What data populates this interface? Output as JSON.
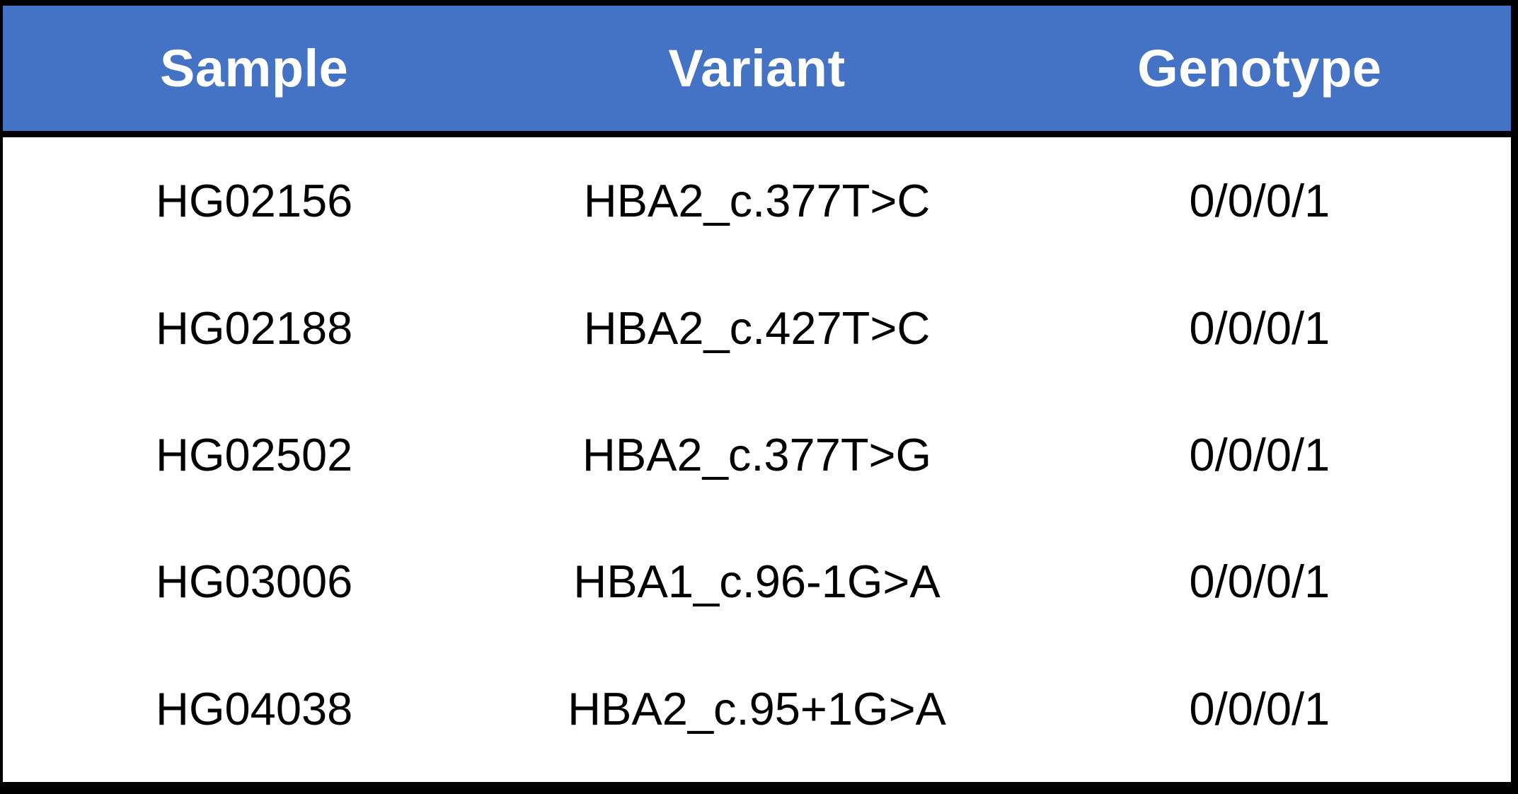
{
  "colors": {
    "header_bg": "#4472C4",
    "header_text": "#FFFFFF",
    "body_bg": "#FFFFFF",
    "body_text": "#000000",
    "border": "#000000"
  },
  "table": {
    "columns": [
      {
        "label": "Sample"
      },
      {
        "label": "Variant"
      },
      {
        "label": "Genotype"
      }
    ],
    "rows": [
      {
        "sample": "HG02156",
        "variant": "HBA2_c.377T>C",
        "genotype": "0/0/0/1"
      },
      {
        "sample": "HG02188",
        "variant": "HBA2_c.427T>C",
        "genotype": "0/0/0/1"
      },
      {
        "sample": "HG02502",
        "variant": "HBA2_c.377T>G",
        "genotype": "0/0/0/1"
      },
      {
        "sample": "HG03006",
        "variant": "HBA1_c.96-1G>A",
        "genotype": "0/0/0/1"
      },
      {
        "sample": "HG04038",
        "variant": "HBA2_c.95+1G>A",
        "genotype": "0/0/0/1"
      }
    ]
  },
  "chart_data": {
    "type": "table",
    "title": "",
    "columns": [
      "Sample",
      "Variant",
      "Genotype"
    ],
    "rows": [
      [
        "HG02156",
        "HBA2_c.377T>C",
        "0/0/0/1"
      ],
      [
        "HG02188",
        "HBA2_c.427T>C",
        "0/0/0/1"
      ],
      [
        "HG02502",
        "HBA2_c.377T>G",
        "0/0/0/1"
      ],
      [
        "HG03006",
        "HBA1_c.96-1G>A",
        "0/0/0/1"
      ],
      [
        "HG04038",
        "HBA2_c.95+1G>A",
        "0/0/0/1"
      ]
    ]
  }
}
